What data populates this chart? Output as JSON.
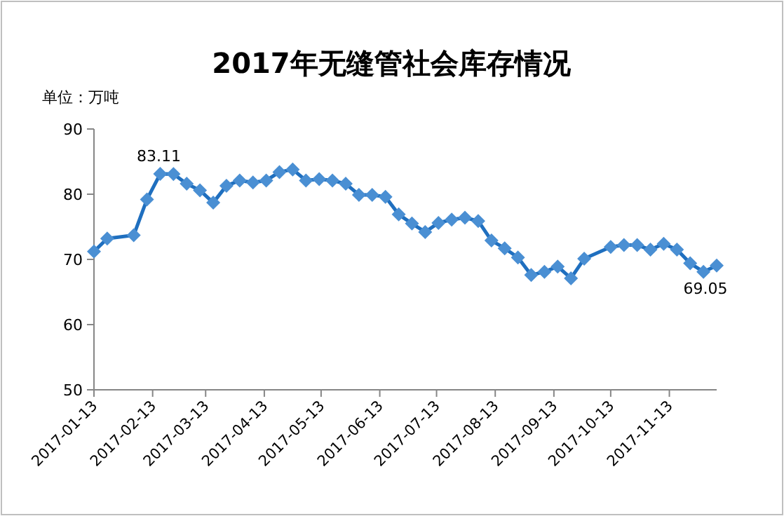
{
  "chart_data": {
    "type": "line",
    "title": "2017年无缝管社会库存情况",
    "ylabel": "单位：万吨",
    "x": [
      "2017-01-13",
      "2017-01-20",
      "2017-02-03",
      "2017-02-10",
      "2017-02-17",
      "2017-02-24",
      "2017-03-03",
      "2017-03-10",
      "2017-03-17",
      "2017-03-24",
      "2017-03-31",
      "2017-04-07",
      "2017-04-14",
      "2017-04-21",
      "2017-04-28",
      "2017-05-05",
      "2017-05-12",
      "2017-05-19",
      "2017-05-26",
      "2017-06-02",
      "2017-06-09",
      "2017-06-16",
      "2017-06-23",
      "2017-06-30",
      "2017-07-07",
      "2017-07-14",
      "2017-07-21",
      "2017-07-28",
      "2017-08-04",
      "2017-08-11",
      "2017-08-18",
      "2017-08-25",
      "2017-09-01",
      "2017-09-08",
      "2017-09-15",
      "2017-09-22",
      "2017-09-29",
      "2017-10-13",
      "2017-10-20",
      "2017-10-27",
      "2017-11-03",
      "2017-11-10",
      "2017-11-17",
      "2017-11-24",
      "2017-12-01",
      "2017-12-08"
    ],
    "series": [
      {
        "color": "#4a8fd3",
        "values": [
          71.2,
          73.2,
          73.7,
          79.2,
          83.11,
          83.1,
          81.6,
          80.6,
          78.7,
          81.3,
          82.1,
          81.8,
          82.1,
          83.4,
          83.8,
          82.1,
          82.3,
          82.1,
          81.6,
          79.9,
          79.9,
          79.6,
          76.9,
          75.5,
          74.2,
          75.6,
          76.1,
          76.4,
          75.9,
          72.9,
          71.7,
          70.3,
          67.6,
          68.1,
          68.9,
          67.1,
          70.1,
          71.9,
          72.2,
          72.2,
          71.5,
          72.4,
          71.5,
          69.4,
          68.1,
          69.05
        ],
        "value_labels": [
          null,
          null,
          null,
          null,
          "83.11",
          null,
          null,
          null,
          null,
          null,
          null,
          null,
          null,
          null,
          null,
          null,
          null,
          null,
          null,
          null,
          null,
          null,
          null,
          null,
          null,
          null,
          null,
          null,
          null,
          null,
          null,
          null,
          null,
          null,
          null,
          null,
          null,
          null,
          null,
          null,
          null,
          null,
          null,
          null,
          null,
          "69.05"
        ]
      }
    ],
    "xlim": [
      "2017-01-13",
      "2017-12-08"
    ],
    "xticks": [
      "2017-01-13",
      "2017-02-13",
      "2017-03-13",
      "2017-04-13",
      "2017-05-13",
      "2017-06-13",
      "2017-07-13",
      "2017-08-13",
      "2017-09-13",
      "2017-10-13",
      "2017-11-13"
    ],
    "ylim": [
      50,
      90
    ],
    "yticks": [
      50,
      60,
      70,
      80,
      90
    ],
    "grid": false,
    "marker": "diamond",
    "line_style": "solid"
  }
}
